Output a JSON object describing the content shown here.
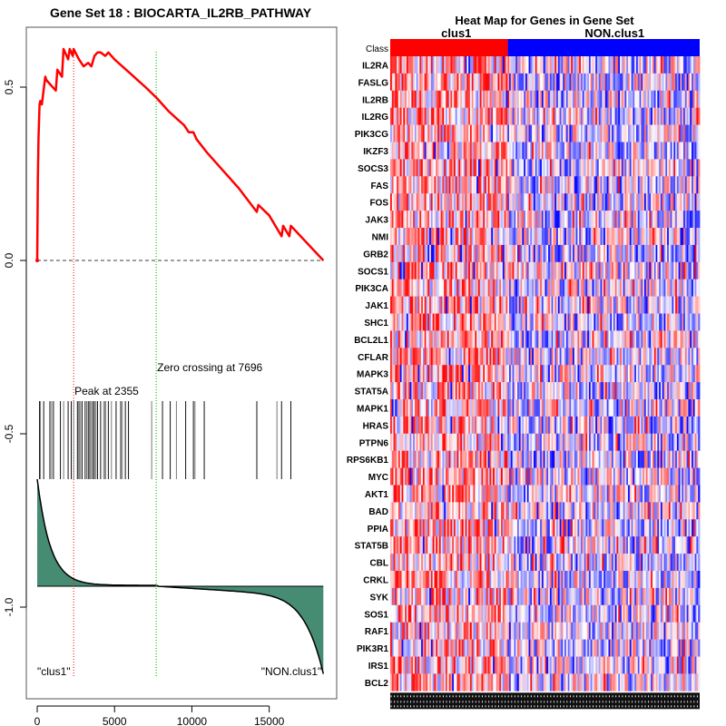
{
  "chart_data": [
    {
      "type": "line",
      "title": "Gene Set  18 : BIOCARTA_IL2RB_PATHWAY",
      "xlabel": "",
      "ylabel": "",
      "xlim": [
        0,
        18600
      ],
      "ylim": [
        -1.25,
        0.65
      ],
      "x_ticks": [
        0,
        5000,
        10000,
        15000
      ],
      "x_tick_labels": [
        "0",
        "5000",
        "10000",
        "15000"
      ],
      "y_ticks": [
        0.5,
        0.0,
        -0.5,
        -1.0
      ],
      "y_tick_labels": [
        "0.5",
        "0.0",
        "-0.5",
        "-1.0"
      ],
      "colors": {
        "es_curve": "#ff0000",
        "peak_line": "#ff0000",
        "zero_crossing_line": "#00cc00",
        "baseline": "#666666",
        "hits": "#000000",
        "ranked_metric_fill": "#468c73"
      },
      "series": [
        {
          "name": "Enrichment score",
          "x": [
            0,
            40,
            80,
            150,
            200,
            300,
            520,
            600,
            1200,
            1300,
            1600,
            1700,
            2000,
            2100,
            2300,
            2355,
            2700,
            3000,
            3300,
            3500,
            3700,
            3900,
            4100,
            4400,
            4600,
            5000,
            5500,
            6000,
            6500,
            7000,
            7696,
            8500,
            9000,
            9500,
            9800,
            10100,
            10300,
            11000,
            12000,
            13000,
            14200,
            14300,
            15000,
            15800,
            15900,
            16300,
            16400,
            18500
          ],
          "y": [
            0.0,
            0.23,
            0.35,
            0.45,
            0.46,
            0.45,
            0.53,
            0.52,
            0.49,
            0.55,
            0.53,
            0.61,
            0.58,
            0.61,
            0.59,
            0.61,
            0.58,
            0.56,
            0.57,
            0.56,
            0.59,
            0.6,
            0.6,
            0.59,
            0.6,
            0.58,
            0.56,
            0.54,
            0.52,
            0.5,
            0.47,
            0.43,
            0.41,
            0.39,
            0.37,
            0.37,
            0.35,
            0.31,
            0.26,
            0.21,
            0.14,
            0.16,
            0.13,
            0.07,
            0.1,
            0.07,
            0.1,
            0.0
          ]
        }
      ],
      "hits": [
        150,
        210,
        420,
        820,
        930,
        1050,
        1500,
        1710,
        2000,
        2200,
        2355,
        2600,
        2700,
        2800,
        2900,
        3100,
        3200,
        3300,
        3400,
        3500,
        3600,
        3700,
        3800,
        3900,
        4100,
        4300,
        4400,
        4600,
        4800,
        5100,
        5400,
        5500,
        5700,
        5900,
        7400,
        8100,
        8600,
        9000,
        9600,
        10100,
        10200,
        10800,
        14200,
        15500,
        15800,
        16400
      ],
      "annotations": {
        "peak_label": "Peak at 2355",
        "peak_x": 2355,
        "zero_crossing_label": "Zero crossing at 7696",
        "zero_crossing_x": 7696,
        "left_class_label": "\"clus1\"",
        "right_class_label": "\"NON.clus1\""
      }
    },
    {
      "type": "heatmap",
      "title": "Heat Map for Genes in Gene Set",
      "class_row_label": "Class",
      "class_groups": [
        {
          "name": "clus1",
          "fraction": 0.38,
          "color": "#ff0000"
        },
        {
          "name": "NON.clus1",
          "fraction": 0.62,
          "color": "#0000ff"
        }
      ],
      "genes": [
        "IL2RA",
        "FASLG",
        "IL2RB",
        "IL2RG",
        "PIK3CG",
        "IKZF3",
        "SOCS3",
        "FAS",
        "FOS",
        "JAK3",
        "NMI",
        "GRB2",
        "SOCS1",
        "PIK3CA",
        "JAK1",
        "SHC1",
        "BCL2L1",
        "CFLAR",
        "MAPK3",
        "STAT5A",
        "MAPK1",
        "HRAS",
        "PTPN6",
        "RPS6KB1",
        "MYC",
        "AKT1",
        "BAD",
        "PPIA",
        "STAT5B",
        "CBL",
        "CRKL",
        "SYK",
        "SOS1",
        "RAF1",
        "PIK3R1",
        "IRS1",
        "BCL2"
      ],
      "color_scale": {
        "low": "#0000ff",
        "mid": "#ffffff",
        "high": "#ff0000"
      }
    }
  ]
}
